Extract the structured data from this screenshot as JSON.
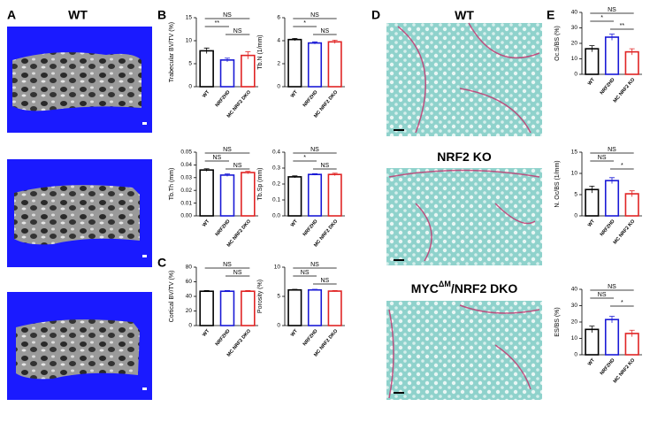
{
  "panels": {
    "labels": [
      "A",
      "B",
      "C",
      "D",
      "E"
    ],
    "ct_title": "WT",
    "histology_titles": [
      {
        "parts": [
          "WT"
        ]
      },
      {
        "parts": [
          "NRF2 KO"
        ]
      },
      {
        "parts": [
          "MYC",
          "ΔM",
          "/NRF2 DKO"
        ]
      }
    ]
  },
  "chart_data": [
    {
      "type": "bar",
      "ylabel": "Trabecular BV/TV (%)",
      "categories": [
        "WT",
        "NRF2HD",
        "MC  NRF2 DKO"
      ],
      "colors": [
        "#000000",
        "#1a1ad6",
        "#e02424"
      ],
      "values": [
        7.8,
        5.8,
        6.8
      ],
      "errors": [
        0.6,
        0.4,
        0.8
      ],
      "ylim": [
        0,
        15
      ],
      "yticks": [
        0,
        5,
        10,
        15
      ],
      "annotations": [
        {
          "text": "NS",
          "pair": [
            0,
            2
          ]
        },
        {
          "text": "**",
          "pair": [
            0,
            1
          ]
        },
        {
          "text": "NS",
          "pair": [
            1,
            2
          ]
        }
      ]
    },
    {
      "type": "bar",
      "ylabel": "Tb.N (1/mm)",
      "categories": [
        "WT",
        "NRF2HD",
        "MC  NRF2 DKO"
      ],
      "colors": [
        "#000000",
        "#1a1ad6",
        "#e02424"
      ],
      "values": [
        4.1,
        3.8,
        3.9
      ],
      "errors": [
        0.1,
        0.1,
        0.15
      ],
      "ylim": [
        0,
        6
      ],
      "yticks": [
        0,
        2,
        4,
        6
      ],
      "annotations": [
        {
          "text": "NS",
          "pair": [
            0,
            2
          ]
        },
        {
          "text": "*",
          "pair": [
            0,
            1
          ]
        },
        {
          "text": "NS",
          "pair": [
            1,
            2
          ]
        }
      ]
    },
    {
      "type": "bar",
      "ylabel": "Tb.Th (mm)",
      "categories": [
        "WT",
        "NRF2HD",
        "MC  NRF2 DKO"
      ],
      "colors": [
        "#000000",
        "#1a1ad6",
        "#e02424"
      ],
      "values": [
        0.036,
        0.032,
        0.034
      ],
      "errors": [
        0.001,
        0.001,
        0.001
      ],
      "ylim": [
        0,
        0.05
      ],
      "yticks": [
        {
          "value": 0,
          "label": "0.00"
        },
        {
          "value": 0.01,
          "label": "0.01"
        },
        {
          "value": 0.02,
          "label": "0.02"
        },
        {
          "value": 0.03,
          "label": "0.03"
        },
        {
          "value": 0.04,
          "label": "0.04"
        },
        {
          "value": 0.05,
          "label": "0.05"
        }
      ],
      "annotations": [
        {
          "text": "NS",
          "pair": [
            0,
            2
          ]
        },
        {
          "text": "NS",
          "pair": [
            0,
            1
          ]
        },
        {
          "text": "NS",
          "pair": [
            1,
            2
          ]
        }
      ]
    },
    {
      "type": "bar",
      "ylabel": "Tb.Sp (mm)",
      "categories": [
        "WT",
        "NRF2HD",
        "MC  NRF2 DKO"
      ],
      "colors": [
        "#000000",
        "#1a1ad6",
        "#e02424"
      ],
      "values": [
        0.245,
        0.26,
        0.26
      ],
      "errors": [
        0.006,
        0.005,
        0.008
      ],
      "ylim": [
        0,
        0.4
      ],
      "yticks": [
        {
          "value": 0,
          "label": "0.0"
        },
        {
          "value": 0.1,
          "label": "0.1"
        },
        {
          "value": 0.2,
          "label": "0.2"
        },
        {
          "value": 0.3,
          "label": "0.3"
        },
        {
          "value": 0.4,
          "label": "0.4"
        }
      ],
      "annotations": [
        {
          "text": "NS",
          "pair": [
            0,
            2
          ]
        },
        {
          "text": "*",
          "pair": [
            0,
            1
          ]
        },
        {
          "text": "NS",
          "pair": [
            1,
            2
          ]
        }
      ]
    },
    {
      "type": "bar",
      "ylabel": "Cortical BV/TV (%)",
      "categories": [
        "WT",
        "NRF2HD",
        "MC  NRF2 DKO"
      ],
      "colors": [
        "#000000",
        "#1a1ad6",
        "#e02424"
      ],
      "values": [
        47,
        47,
        47
      ],
      "errors": [
        1,
        1,
        1
      ],
      "ylim": [
        0,
        80
      ],
      "yticks": [
        0,
        20,
        40,
        60,
        80
      ],
      "annotations": [
        {
          "text": "NS",
          "pair": [
            0,
            2
          ]
        },
        {
          "text": "NS",
          "pair": [
            1,
            2
          ]
        }
      ]
    },
    {
      "type": "bar",
      "ylabel": "Porosity (%)",
      "categories": [
        "WT",
        "NRF2HD",
        "MC  NRF2 DKO"
      ],
      "colors": [
        "#000000",
        "#1a1ad6",
        "#e02424"
      ],
      "values": [
        6.1,
        6.1,
        5.9
      ],
      "errors": [
        0.1,
        0.1,
        0.1
      ],
      "ylim": [
        0,
        10
      ],
      "yticks": [
        0,
        5,
        10
      ],
      "annotations": [
        {
          "text": "NS",
          "pair": [
            0,
            2
          ]
        },
        {
          "text": "NS",
          "pair": [
            0,
            1
          ]
        },
        {
          "text": "NS",
          "pair": [
            1,
            2
          ]
        }
      ]
    },
    {
      "type": "bar",
      "ylabel": "Oc.S/BS (%)",
      "categories": [
        "WT",
        "NRF2HD",
        "MC  NRF2 KO"
      ],
      "colors": [
        "#000000",
        "#1a1ad6",
        "#e02424"
      ],
      "values": [
        16.5,
        24,
        14.5
      ],
      "errors": [
        2,
        2,
        2
      ],
      "ylim": [
        0,
        40
      ],
      "yticks": [
        0,
        10,
        20,
        30,
        40
      ],
      "annotations": [
        {
          "text": "NS",
          "pair": [
            0,
            2
          ]
        },
        {
          "text": "*",
          "pair": [
            0,
            1
          ]
        },
        {
          "text": "**",
          "pair": [
            1,
            2
          ]
        }
      ]
    },
    {
      "type": "bar",
      "ylabel": "N. Oc/BS (1/mm)",
      "categories": [
        "WT",
        "NRF2HD",
        "MC  NRF2 KO"
      ],
      "colors": [
        "#000000",
        "#1a1ad6",
        "#e02424"
      ],
      "values": [
        6.2,
        8.3,
        5.2
      ],
      "errors": [
        0.8,
        0.7,
        0.7
      ],
      "ylim": [
        0,
        15
      ],
      "yticks": [
        0,
        5,
        10,
        15
      ],
      "annotations": [
        {
          "text": "NS",
          "pair": [
            0,
            2
          ]
        },
        {
          "text": "NS",
          "pair": [
            0,
            1
          ]
        },
        {
          "text": "*",
          "pair": [
            1,
            2
          ]
        }
      ]
    },
    {
      "type": "bar",
      "ylabel": "ES/BS (%)",
      "categories": [
        "WT",
        "NRF2HD",
        "MC  NRF2 KO"
      ],
      "colors": [
        "#000000",
        "#1a1ad6",
        "#e02424"
      ],
      "values": [
        15.5,
        21.5,
        13
      ],
      "errors": [
        2,
        2,
        2
      ],
      "ylim": [
        0,
        40
      ],
      "yticks": [
        0,
        10,
        20,
        30,
        40
      ],
      "annotations": [
        {
          "text": "NS",
          "pair": [
            0,
            2
          ]
        },
        {
          "text": "NS",
          "pair": [
            0,
            1
          ]
        },
        {
          "text": "*",
          "pair": [
            1,
            2
          ]
        }
      ]
    }
  ]
}
